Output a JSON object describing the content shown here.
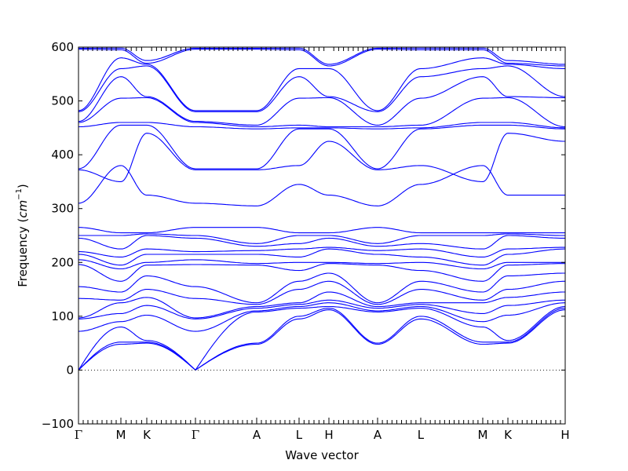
{
  "chart_data": {
    "type": "line",
    "xlabel": "Wave vector",
    "ylabel_prefix": "Frequency (",
    "ylabel_unit": "cm",
    "ylabel_exp": "−1",
    "ylabel_suffix": ")",
    "ylim": [
      -100,
      600
    ],
    "yticks": [
      -100,
      0,
      100,
      200,
      300,
      400,
      500,
      600
    ],
    "ytick_labels": [
      "−100",
      "0",
      "100",
      "200",
      "300",
      "400",
      "500",
      "600"
    ],
    "grid": false,
    "zero_line": "dotted",
    "line_color": "#0000ff",
    "path_points": [
      "Γ",
      "M",
      "K",
      "Γ",
      "A",
      "L",
      "H",
      "A",
      "L",
      "M",
      "K",
      "H"
    ],
    "path_segments": [
      "Γ-M",
      "M-K",
      "K-Γ",
      "Γ-A",
      "A-L",
      "L-H",
      "H-A",
      "A-L",
      "L-M",
      "M-K",
      "K-H"
    ],
    "point_frequencies": {
      "Γ": [
        0,
        0,
        0,
        72,
        95,
        97,
        133,
        155,
        196,
        205,
        215,
        220,
        245,
        250,
        265,
        310,
        372,
        374,
        452,
        460,
        462,
        480,
        482,
        596,
        598
      ],
      "M": [
        48,
        52,
        80,
        90,
        105,
        125,
        130,
        145,
        165,
        188,
        195,
        210,
        225,
        250,
        255,
        380,
        350,
        455,
        460,
        505,
        545,
        560,
        580,
        595,
        598
      ],
      "K": [
        50,
        52,
        55,
        102,
        120,
        135,
        150,
        175,
        195,
        200,
        215,
        225,
        250,
        253,
        255,
        325,
        440,
        455,
        460,
        506,
        508,
        565,
        568,
        570,
        575
      ],
      "A": [
        48,
        50,
        108,
        110,
        115,
        118,
        122,
        125,
        195,
        198,
        215,
        222,
        230,
        235,
        265,
        305,
        372,
        374,
        448,
        452,
        455,
        480,
        482,
        596,
        598
      ],
      "L": [
        95,
        100,
        115,
        118,
        122,
        125,
        150,
        165,
        185,
        200,
        210,
        225,
        235,
        250,
        255,
        345,
        380,
        448,
        450,
        455,
        505,
        545,
        560,
        595,
        598
      ],
      "H": [
        112,
        115,
        118,
        125,
        130,
        145,
        165,
        180,
        198,
        200,
        225,
        228,
        245,
        250,
        255,
        325,
        425,
        448,
        450,
        452,
        506,
        508,
        560,
        565,
        568
      ]
    }
  }
}
